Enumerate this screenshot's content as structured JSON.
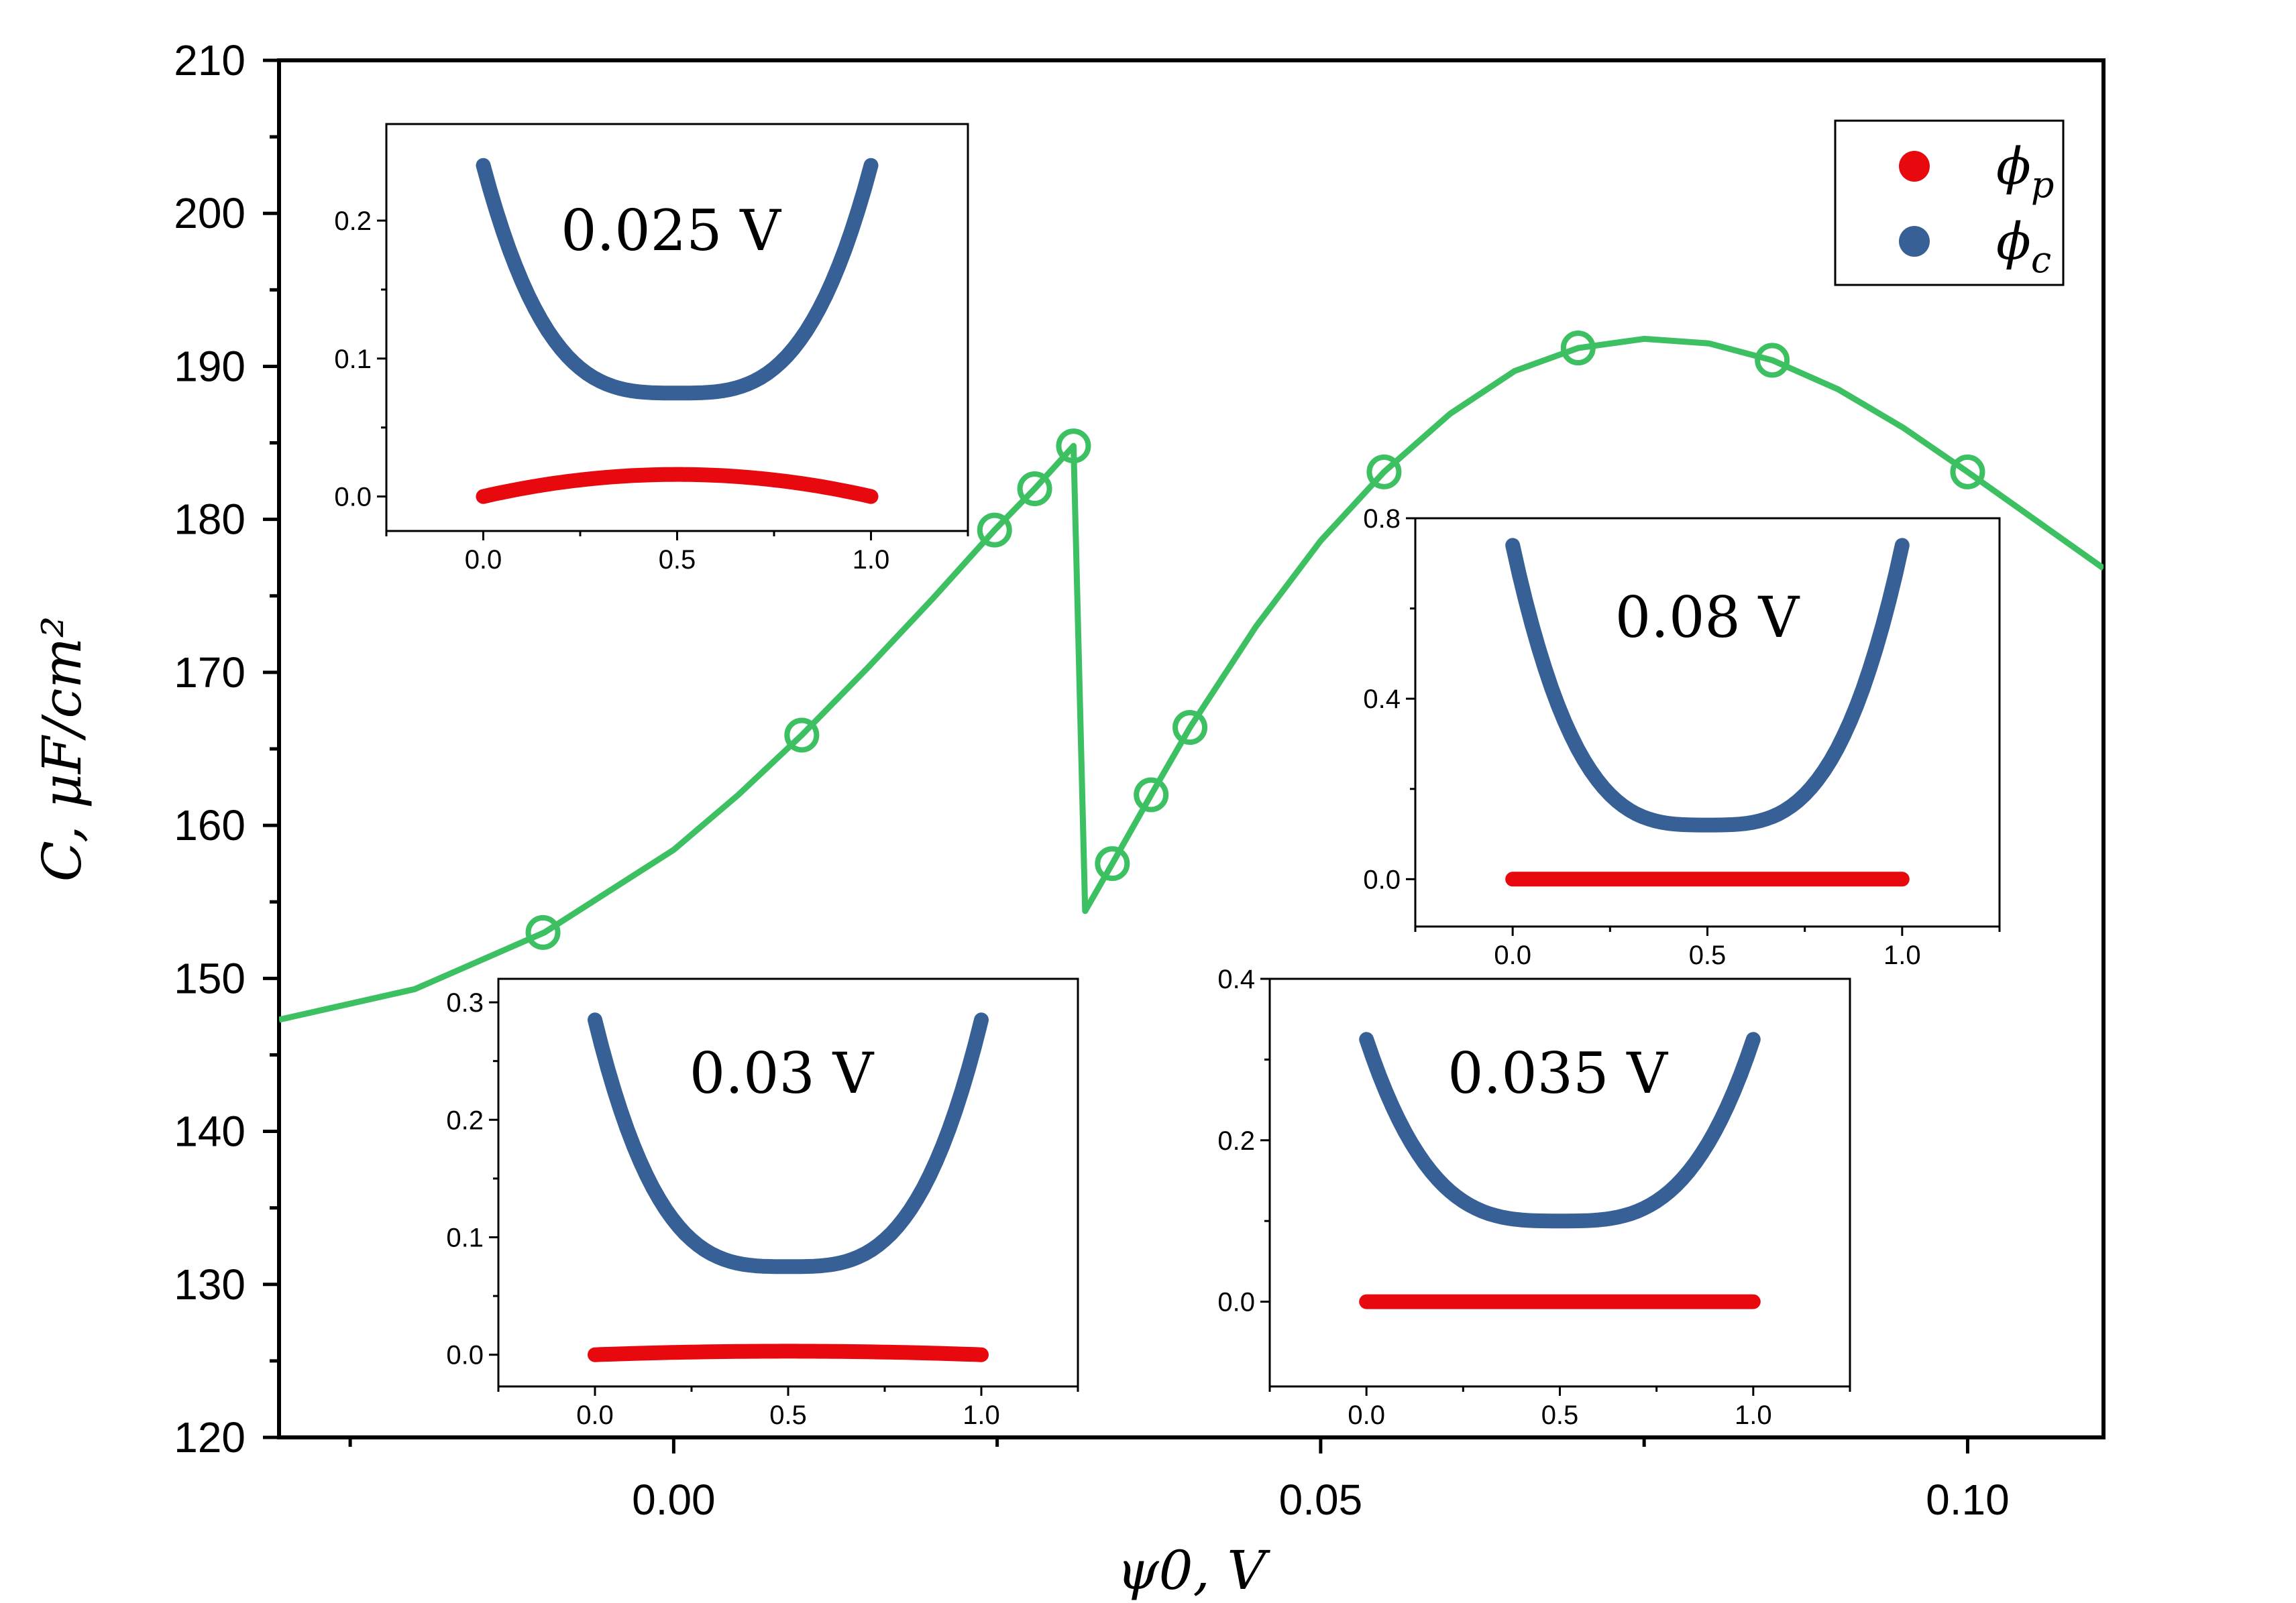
{
  "chart_data": [
    {
      "type": "line",
      "role": "main",
      "xlabel": "ψ0, V",
      "ylabel": "C, μF/cm²",
      "xlim": [
        -0.0305,
        0.1105
      ],
      "ylim": [
        120,
        210
      ],
      "xticks": [
        0.0,
        0.05,
        0.1
      ],
      "xtick_labels": [
        "0.00",
        "0.05",
        "0.10"
      ],
      "yticks": [
        120,
        130,
        140,
        150,
        160,
        170,
        180,
        190,
        200,
        210
      ],
      "ytick_labels": [
        "120",
        "130",
        "140",
        "150",
        "160",
        "170",
        "180",
        "190",
        "200",
        "210"
      ],
      "line_color": "#3cc062",
      "series": [
        {
          "name": "C",
          "x": [
            -0.0305,
            -0.02,
            -0.01,
            0.0,
            0.005,
            0.0099,
            0.015,
            0.02,
            0.0248,
            0.0279,
            0.0309,
            0.0318,
            0.0339,
            0.0369,
            0.0399,
            0.045,
            0.05,
            0.0549,
            0.06,
            0.065,
            0.0699,
            0.075,
            0.08,
            0.0849,
            0.09,
            0.095,
            0.1,
            0.1105
          ],
          "y": [
            147.3,
            149.3,
            153.0,
            158.4,
            162.0,
            165.9,
            170.3,
            174.8,
            179.3,
            182.0,
            184.8,
            154.4,
            157.5,
            162.0,
            166.4,
            173.0,
            178.6,
            183.1,
            186.9,
            189.7,
            191.2,
            191.8,
            191.5,
            190.4,
            188.5,
            186.0,
            183.1,
            176.8
          ]
        }
      ],
      "markers": {
        "x": [
          -0.0101,
          0.0099,
          0.0248,
          0.0279,
          0.0309,
          0.0339,
          0.0369,
          0.0399,
          0.0549,
          0.0699,
          0.0849,
          0.1
        ],
        "y": [
          153.0,
          165.9,
          179.3,
          182.0,
          184.8,
          157.5,
          162.0,
          166.4,
          183.1,
          191.2,
          190.4,
          183.1
        ]
      },
      "legend": {
        "position": "top-right",
        "entries": [
          {
            "label": "ϕp",
            "sym": "ϕ",
            "sub": "p",
            "color": "#e8090f"
          },
          {
            "label": "ϕc",
            "sym": "ϕ",
            "sub": "c",
            "color": "#376196"
          }
        ]
      }
    },
    {
      "type": "line",
      "role": "inset",
      "annotation": "0.025 V",
      "xlim": [
        -0.25,
        1.25
      ],
      "ylim": [
        -0.025,
        0.27
      ],
      "xticks": [
        0.0,
        0.5,
        1.0
      ],
      "xtick_labels": [
        "0.0",
        "0.5",
        "1.0"
      ],
      "yticks": [
        0.0,
        0.1,
        0.2
      ],
      "ytick_labels": [
        "0.0",
        "0.1",
        "0.2"
      ],
      "series": [
        {
          "name": "ϕc",
          "color": "#376196",
          "ends": 0.24,
          "center": 0.075
        },
        {
          "name": "ϕp",
          "color": "#e8090f",
          "ends": 0.0,
          "center": 0.016
        }
      ]
    },
    {
      "type": "line",
      "role": "inset",
      "annotation": "0.08 V",
      "xlim": [
        -0.25,
        1.25
      ],
      "ylim": [
        -0.105,
        0.8
      ],
      "xticks": [
        0.0,
        0.5,
        1.0
      ],
      "xtick_labels": [
        "0.0",
        "0.5",
        "1.0"
      ],
      "yticks": [
        0.0,
        0.4,
        0.8
      ],
      "ytick_labels": [
        "0.0",
        "0.4",
        "0.8"
      ],
      "series": [
        {
          "name": "ϕc",
          "color": "#376196",
          "ends": 0.74,
          "center": 0.12
        },
        {
          "name": "ϕp",
          "color": "#e8090f",
          "ends": 0.0,
          "center": 0.0
        }
      ]
    },
    {
      "type": "line",
      "role": "inset",
      "annotation": "0.03 V",
      "xlim": [
        -0.25,
        1.25
      ],
      "ylim": [
        -0.027,
        0.32
      ],
      "xticks": [
        0.0,
        0.5,
        1.0
      ],
      "xtick_labels": [
        "0.0",
        "0.5",
        "1.0"
      ],
      "yticks": [
        0.0,
        0.1,
        0.2,
        0.3
      ],
      "ytick_labels": [
        "0.0",
        "0.1",
        "0.2",
        "0.3"
      ],
      "series": [
        {
          "name": "ϕc",
          "color": "#376196",
          "ends": 0.285,
          "center": 0.075
        },
        {
          "name": "ϕp",
          "color": "#e8090f",
          "ends": 0.0,
          "center": 0.003
        }
      ]
    },
    {
      "type": "line",
      "role": "inset",
      "annotation": "0.035 V",
      "xlim": [
        -0.25,
        1.25
      ],
      "ylim": [
        -0.105,
        0.4
      ],
      "xticks": [
        0.0,
        0.5,
        1.0
      ],
      "xtick_labels": [
        "0.0",
        "0.5",
        "1.0"
      ],
      "yticks": [
        0.0,
        0.2,
        0.4
      ],
      "ytick_labels": [
        "0.0",
        "0.2",
        "0.4"
      ],
      "series": [
        {
          "name": "ϕc",
          "color": "#376196",
          "ends": 0.325,
          "center": 0.1
        },
        {
          "name": "ϕp",
          "color": "#e8090f",
          "ends": 0.0,
          "center": 0.0
        }
      ]
    }
  ]
}
